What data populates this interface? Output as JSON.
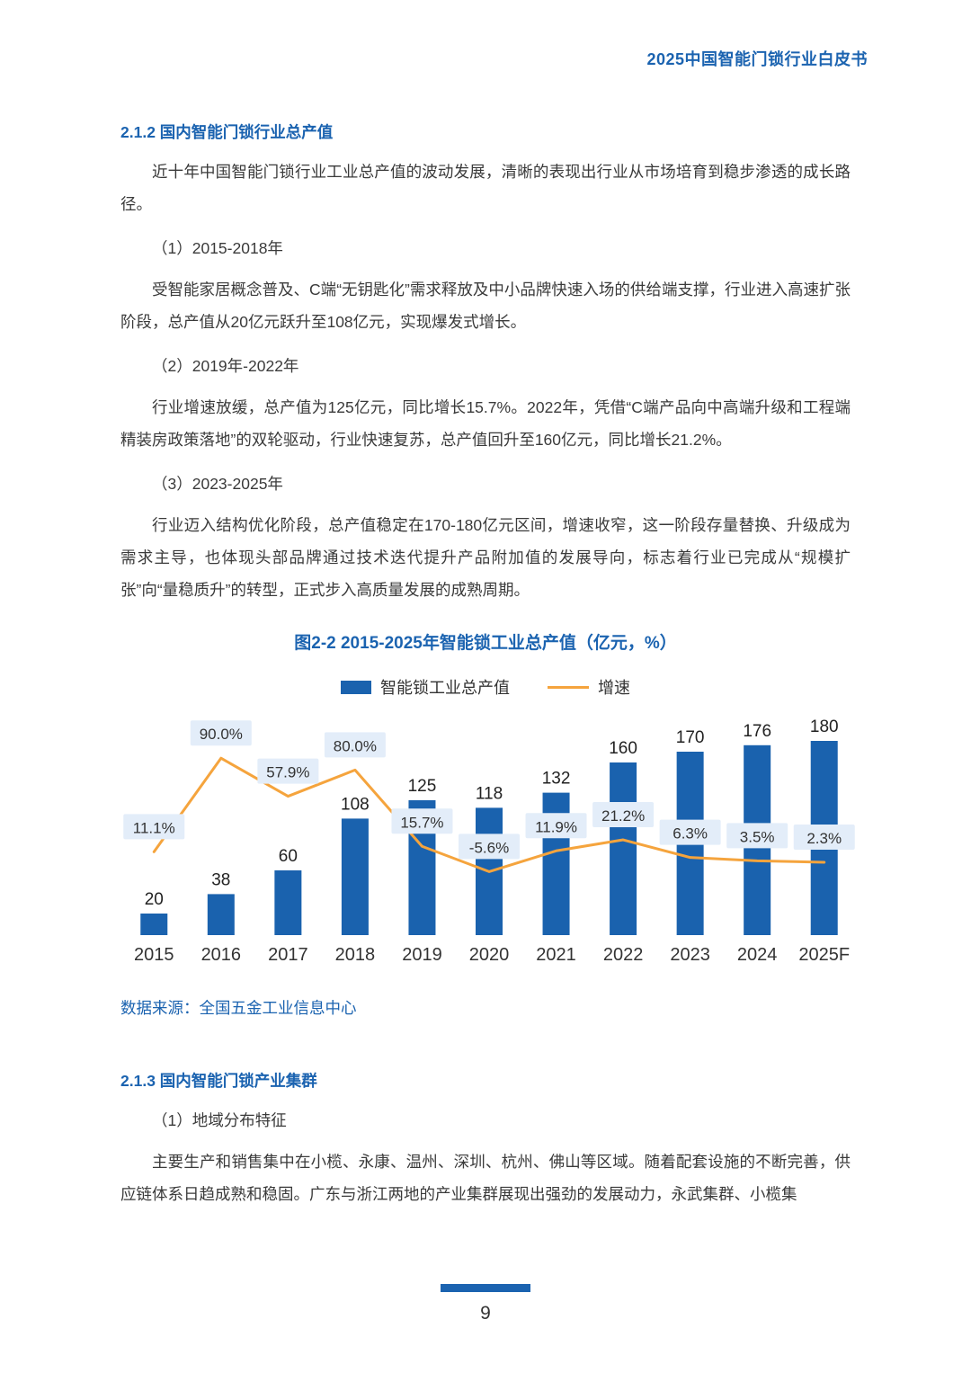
{
  "header": {
    "title": "2025中国智能门锁行业白皮书"
  },
  "section_212": {
    "heading": "2.1.2 国内智能门锁行业总产值",
    "para_intro": "近十年中国智能门锁行业工业总产值的波动发展，清晰的表现出行业从市场培育到稳步渗透的成长路径。",
    "item1_title": "（1）2015-2018年",
    "item1_body": "受智能家居概念普及、C端“无钥匙化”需求释放及中小品牌快速入场的供给端支撑，行业进入高速扩张阶段，总产值从20亿元跃升至108亿元，实现爆发式增长。",
    "item2_title": "（2）2019年-2022年",
    "item2_body": "行业增速放缓，总产值为125亿元，同比增长15.7%。2022年，凭借“C端产品向中高端升级和工程端精装房政策落地”的双轮驱动，行业快速复苏，总产值回升至160亿元，同比增长21.2%。",
    "item3_title": "（3）2023-2025年",
    "item3_body": "行业迈入结构优化阶段，总产值稳定在170-180亿元区间，增速收窄，这一阶段存量替换、升级成为需求主导，也体现头部品牌通过技术迭代提升产品附加值的发展导向，标志着行业已完成从“规模扩张”向“量稳质升”的转型，正式步入高质量发展的成熟周期。"
  },
  "chart": {
    "title": "图2-2 2015-2025年智能锁工业总产值（亿元，%）",
    "legend": {
      "bars": "智能锁工业总产值",
      "line": "增速"
    },
    "source": "数据来源：全国五金工业信息中心"
  },
  "chart_data": {
    "type": "bar",
    "title": "图2-2 2015-2025年智能锁工业总产值（亿元，%）",
    "categories": [
      "2015",
      "2016",
      "2017",
      "2018",
      "2019",
      "2020",
      "2021",
      "2022",
      "2023",
      "2024",
      "2025F"
    ],
    "series": [
      {
        "name": "智能锁工业总产值",
        "type": "bar",
        "unit": "亿元",
        "values": [
          20,
          38,
          60,
          108,
          125,
          118,
          132,
          160,
          170,
          176,
          180
        ]
      },
      {
        "name": "增速",
        "type": "line",
        "unit": "%",
        "values": [
          11.1,
          90.0,
          57.9,
          80.0,
          15.7,
          -5.6,
          11.9,
          21.2,
          6.3,
          3.5,
          2.3
        ]
      }
    ],
    "legend_position": "top",
    "gridlines": false,
    "y_axis_visible": false,
    "colors": {
      "bar": "#1a62ae",
      "line": "#f5a43d",
      "label_box": "#e3edf9"
    }
  },
  "section_213": {
    "heading": "2.1.3 国内智能门锁产业集群",
    "item1_title": "（1）地域分布特征",
    "item1_body": "主要生产和销售集中在小榄、永康、温州、深圳、杭州、佛山等区域。随着配套设施的不断完善，供应链体系日趋成熟和稳固。广东与浙江两地的产业集群展现出强劲的发展动力，永武集群、小榄集"
  },
  "footer": {
    "page_number": "9"
  }
}
